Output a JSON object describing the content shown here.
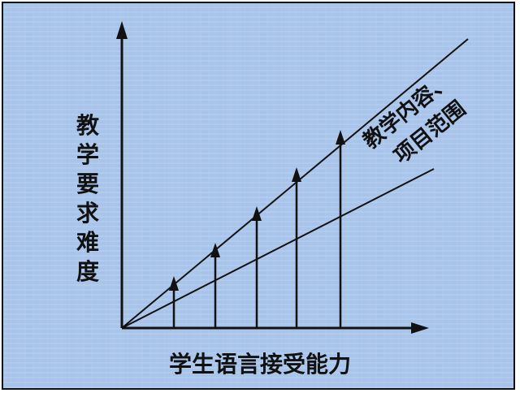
{
  "diagram": {
    "y_axis_label": "教学要求难度",
    "x_axis_label": "学生语言接受能力",
    "upper_line_label": [
      "教学内容、",
      "项目范围"
    ]
  },
  "colors": {
    "background": "#a9c4ea",
    "ink": "#111111"
  }
}
